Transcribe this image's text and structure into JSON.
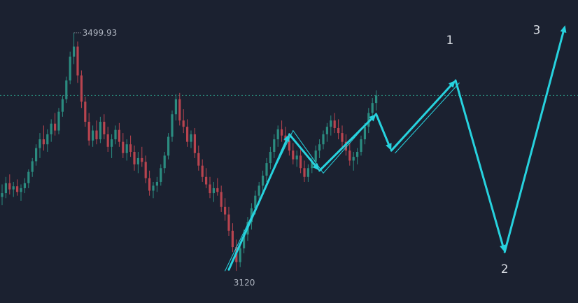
{
  "chart_data": {
    "type": "candlestick",
    "price_range": [
      3100,
      3530
    ],
    "high_marker": {
      "value": 3499.93,
      "label": "3499.93"
    },
    "low_marker": {
      "value": 3120,
      "label": "3120"
    },
    "reference_line": {
      "value": 3400,
      "style": "dotted",
      "color": "#2a8f7e"
    },
    "colors": {
      "background": "#1b2130",
      "up": "#2b8c80",
      "down": "#b8444f",
      "arrow": "#27d2de"
    },
    "candles": [
      {
        "o": 3238,
        "h": 3258,
        "l": 3225,
        "c": 3244
      },
      {
        "o": 3244,
        "h": 3270,
        "l": 3236,
        "c": 3260
      },
      {
        "o": 3260,
        "h": 3274,
        "l": 3242,
        "c": 3250
      },
      {
        "o": 3250,
        "h": 3262,
        "l": 3238,
        "c": 3255
      },
      {
        "o": 3255,
        "h": 3266,
        "l": 3240,
        "c": 3246
      },
      {
        "o": 3246,
        "h": 3258,
        "l": 3232,
        "c": 3252
      },
      {
        "o": 3252,
        "h": 3268,
        "l": 3244,
        "c": 3260
      },
      {
        "o": 3260,
        "h": 3282,
        "l": 3252,
        "c": 3278
      },
      {
        "o": 3278,
        "h": 3300,
        "l": 3270,
        "c": 3295
      },
      {
        "o": 3295,
        "h": 3322,
        "l": 3288,
        "c": 3316
      },
      {
        "o": 3316,
        "h": 3340,
        "l": 3300,
        "c": 3330
      },
      {
        "o": 3330,
        "h": 3352,
        "l": 3312,
        "c": 3322
      },
      {
        "o": 3322,
        "h": 3346,
        "l": 3310,
        "c": 3338
      },
      {
        "o": 3338,
        "h": 3362,
        "l": 3326,
        "c": 3355
      },
      {
        "o": 3355,
        "h": 3372,
        "l": 3336,
        "c": 3344
      },
      {
        "o": 3344,
        "h": 3380,
        "l": 3338,
        "c": 3374
      },
      {
        "o": 3374,
        "h": 3400,
        "l": 3366,
        "c": 3394
      },
      {
        "o": 3394,
        "h": 3430,
        "l": 3388,
        "c": 3424
      },
      {
        "o": 3424,
        "h": 3470,
        "l": 3418,
        "c": 3462
      },
      {
        "o": 3462,
        "h": 3499.93,
        "l": 3450,
        "c": 3478
      },
      {
        "o": 3478,
        "h": 3486,
        "l": 3420,
        "c": 3432
      },
      {
        "o": 3432,
        "h": 3440,
        "l": 3380,
        "c": 3390
      },
      {
        "o": 3390,
        "h": 3398,
        "l": 3350,
        "c": 3358
      },
      {
        "o": 3358,
        "h": 3372,
        "l": 3320,
        "c": 3328
      },
      {
        "o": 3328,
        "h": 3352,
        "l": 3318,
        "c": 3344
      },
      {
        "o": 3344,
        "h": 3360,
        "l": 3322,
        "c": 3330
      },
      {
        "o": 3330,
        "h": 3366,
        "l": 3324,
        "c": 3358
      },
      {
        "o": 3358,
        "h": 3370,
        "l": 3330,
        "c": 3338
      },
      {
        "o": 3338,
        "h": 3350,
        "l": 3310,
        "c": 3318
      },
      {
        "o": 3318,
        "h": 3338,
        "l": 3300,
        "c": 3330
      },
      {
        "o": 3330,
        "h": 3352,
        "l": 3322,
        "c": 3345
      },
      {
        "o": 3345,
        "h": 3356,
        "l": 3318,
        "c": 3326
      },
      {
        "o": 3326,
        "h": 3340,
        "l": 3300,
        "c": 3308
      },
      {
        "o": 3308,
        "h": 3330,
        "l": 3296,
        "c": 3322
      },
      {
        "o": 3322,
        "h": 3336,
        "l": 3302,
        "c": 3310
      },
      {
        "o": 3310,
        "h": 3320,
        "l": 3280,
        "c": 3290
      },
      {
        "o": 3290,
        "h": 3310,
        "l": 3276,
        "c": 3300
      },
      {
        "o": 3300,
        "h": 3318,
        "l": 3286,
        "c": 3294
      },
      {
        "o": 3294,
        "h": 3304,
        "l": 3260,
        "c": 3268
      },
      {
        "o": 3268,
        "h": 3280,
        "l": 3240,
        "c": 3248
      },
      {
        "o": 3248,
        "h": 3262,
        "l": 3236,
        "c": 3256
      },
      {
        "o": 3256,
        "h": 3270,
        "l": 3246,
        "c": 3262
      },
      {
        "o": 3262,
        "h": 3290,
        "l": 3256,
        "c": 3284
      },
      {
        "o": 3284,
        "h": 3310,
        "l": 3276,
        "c": 3304
      },
      {
        "o": 3304,
        "h": 3340,
        "l": 3298,
        "c": 3334
      },
      {
        "o": 3334,
        "h": 3376,
        "l": 3326,
        "c": 3370
      },
      {
        "o": 3370,
        "h": 3402,
        "l": 3360,
        "c": 3394
      },
      {
        "o": 3394,
        "h": 3404,
        "l": 3352,
        "c": 3360
      },
      {
        "o": 3360,
        "h": 3378,
        "l": 3340,
        "c": 3350
      },
      {
        "o": 3350,
        "h": 3362,
        "l": 3318,
        "c": 3326
      },
      {
        "o": 3326,
        "h": 3344,
        "l": 3316,
        "c": 3338
      },
      {
        "o": 3338,
        "h": 3348,
        "l": 3300,
        "c": 3308
      },
      {
        "o": 3308,
        "h": 3320,
        "l": 3280,
        "c": 3288
      },
      {
        "o": 3288,
        "h": 3298,
        "l": 3262,
        "c": 3270
      },
      {
        "o": 3270,
        "h": 3284,
        "l": 3252,
        "c": 3258
      },
      {
        "o": 3258,
        "h": 3270,
        "l": 3236,
        "c": 3244
      },
      {
        "o": 3244,
        "h": 3262,
        "l": 3230,
        "c": 3252
      },
      {
        "o": 3252,
        "h": 3268,
        "l": 3240,
        "c": 3246
      },
      {
        "o": 3246,
        "h": 3256,
        "l": 3214,
        "c": 3222
      },
      {
        "o": 3222,
        "h": 3236,
        "l": 3200,
        "c": 3210
      },
      {
        "o": 3210,
        "h": 3222,
        "l": 3176,
        "c": 3184
      },
      {
        "o": 3184,
        "h": 3196,
        "l": 3150,
        "c": 3158
      },
      {
        "o": 3158,
        "h": 3170,
        "l": 3120,
        "c": 3134
      },
      {
        "o": 3134,
        "h": 3162,
        "l": 3126,
        "c": 3156
      },
      {
        "o": 3156,
        "h": 3186,
        "l": 3148,
        "c": 3178
      },
      {
        "o": 3178,
        "h": 3206,
        "l": 3168,
        "c": 3198
      },
      {
        "o": 3198,
        "h": 3228,
        "l": 3186,
        "c": 3220
      },
      {
        "o": 3220,
        "h": 3248,
        "l": 3210,
        "c": 3240
      },
      {
        "o": 3240,
        "h": 3262,
        "l": 3226,
        "c": 3256
      },
      {
        "o": 3256,
        "h": 3280,
        "l": 3244,
        "c": 3272
      },
      {
        "o": 3272,
        "h": 3300,
        "l": 3262,
        "c": 3292
      },
      {
        "o": 3292,
        "h": 3318,
        "l": 3282,
        "c": 3310
      },
      {
        "o": 3310,
        "h": 3338,
        "l": 3300,
        "c": 3330
      },
      {
        "o": 3330,
        "h": 3352,
        "l": 3318,
        "c": 3346
      },
      {
        "o": 3346,
        "h": 3360,
        "l": 3326,
        "c": 3336
      },
      {
        "o": 3336,
        "h": 3350,
        "l": 3318,
        "c": 3328
      },
      {
        "o": 3328,
        "h": 3340,
        "l": 3304,
        "c": 3312
      },
      {
        "o": 3312,
        "h": 3324,
        "l": 3290,
        "c": 3298
      },
      {
        "o": 3298,
        "h": 3312,
        "l": 3286,
        "c": 3304
      },
      {
        "o": 3304,
        "h": 3314,
        "l": 3276,
        "c": 3284
      },
      {
        "o": 3284,
        "h": 3296,
        "l": 3262,
        "c": 3270
      },
      {
        "o": 3270,
        "h": 3290,
        "l": 3262,
        "c": 3284
      },
      {
        "o": 3284,
        "h": 3300,
        "l": 3276,
        "c": 3294
      },
      {
        "o": 3294,
        "h": 3320,
        "l": 3286,
        "c": 3312
      },
      {
        "o": 3312,
        "h": 3330,
        "l": 3300,
        "c": 3322
      },
      {
        "o": 3322,
        "h": 3344,
        "l": 3314,
        "c": 3338
      },
      {
        "o": 3338,
        "h": 3356,
        "l": 3326,
        "c": 3350
      },
      {
        "o": 3350,
        "h": 3368,
        "l": 3336,
        "c": 3360
      },
      {
        "o": 3360,
        "h": 3372,
        "l": 3340,
        "c": 3348
      },
      {
        "o": 3348,
        "h": 3362,
        "l": 3330,
        "c": 3340
      },
      {
        "o": 3340,
        "h": 3352,
        "l": 3318,
        "c": 3326
      },
      {
        "o": 3326,
        "h": 3338,
        "l": 3304,
        "c": 3312
      },
      {
        "o": 3312,
        "h": 3324,
        "l": 3288,
        "c": 3296
      },
      {
        "o": 3296,
        "h": 3310,
        "l": 3280,
        "c": 3302
      },
      {
        "o": 3302,
        "h": 3316,
        "l": 3290,
        "c": 3310
      },
      {
        "o": 3310,
        "h": 3336,
        "l": 3304,
        "c": 3330
      },
      {
        "o": 3330,
        "h": 3356,
        "l": 3322,
        "c": 3350
      },
      {
        "o": 3350,
        "h": 3380,
        "l": 3340,
        "c": 3372
      },
      {
        "o": 3372,
        "h": 3396,
        "l": 3362,
        "c": 3388
      },
      {
        "o": 3388,
        "h": 3408,
        "l": 3376,
        "c": 3400
      }
    ],
    "arrows": [
      {
        "from": {
          "i": 60,
          "v": 3122
        },
        "to": {
          "i": 76,
          "v": 3338
        },
        "weight": "thick"
      },
      {
        "from": {
          "i": 76,
          "v": 3338
        },
        "to": {
          "i": 84,
          "v": 3280
        },
        "weight": "thick"
      },
      {
        "from": {
          "i": 84,
          "v": 3280
        },
        "to": {
          "i": 99,
          "v": 3370
        },
        "weight": "thick"
      },
      {
        "from": {
          "i": 99,
          "v": 3370
        },
        "to": {
          "i": 103,
          "v": 3312
        },
        "weight": "thick"
      },
      {
        "from": {
          "i": 103,
          "v": 3312
        },
        "to": {
          "i": 120,
          "v": 3424
        },
        "weight": "thick"
      },
      {
        "from": {
          "i": 120,
          "v": 3424
        },
        "to": {
          "i": 133,
          "v": 3150
        },
        "weight": "thick"
      },
      {
        "from": {
          "i": 133,
          "v": 3150
        },
        "to": {
          "i": 149,
          "v": 3512
        },
        "weight": "thick"
      },
      {
        "from": {
          "i": 59,
          "v": 3120
        },
        "to": {
          "i": 77,
          "v": 3344
        },
        "weight": "thin"
      },
      {
        "from": {
          "i": 77,
          "v": 3344
        },
        "to": {
          "i": 85,
          "v": 3276
        },
        "weight": "thin"
      },
      {
        "from": {
          "i": 85,
          "v": 3276
        },
        "to": {
          "i": 99,
          "v": 3372
        },
        "weight": "thin"
      },
      {
        "from": {
          "i": 104,
          "v": 3308
        },
        "to": {
          "i": 121,
          "v": 3420
        },
        "weight": "thin"
      }
    ],
    "wave_labels": [
      {
        "text": "1",
        "i": 118.5,
        "v": 3482
      },
      {
        "text": "2",
        "i": 133,
        "v": 3117
      },
      {
        "text": "3",
        "i": 141.5,
        "v": 3498
      }
    ]
  }
}
